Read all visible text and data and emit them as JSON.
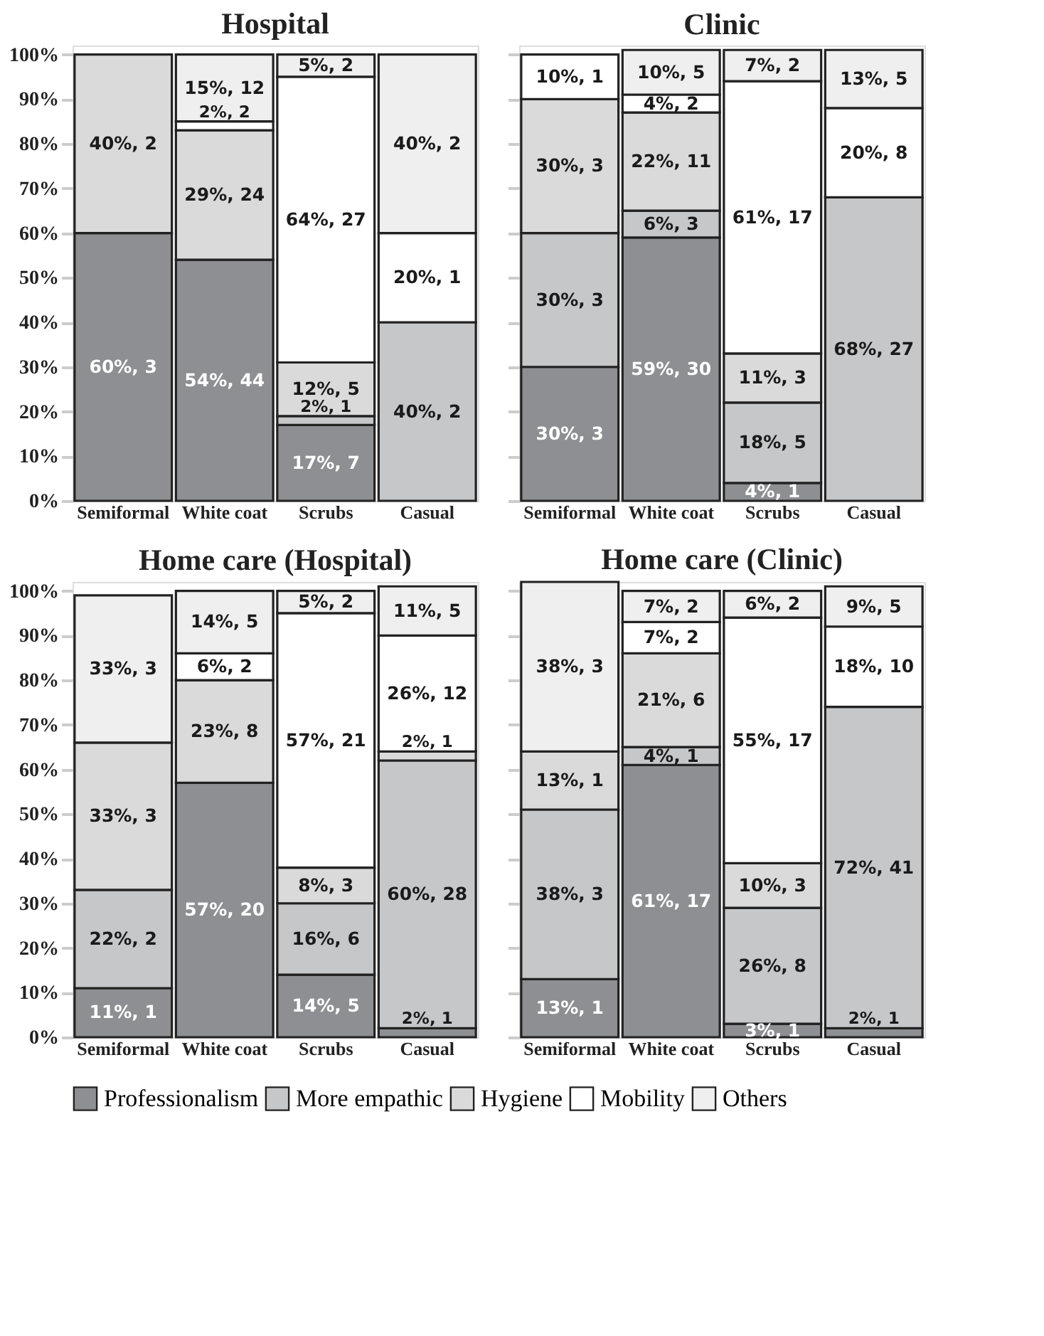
{
  "chart_data": [
    {
      "type": "bar",
      "title": "Hospital",
      "stacked": true,
      "legend": "bottom",
      "grid": false,
      "categories": [
        "Semiformal",
        "White coat",
        "Scrubs",
        "Casual"
      ],
      "ylim": [
        0,
        102
      ],
      "yticks": [
        {
          "value": 0,
          "label": "0%"
        },
        {
          "value": 10,
          "label": "10%"
        },
        {
          "value": 20,
          "label": "20%"
        },
        {
          "value": 30,
          "label": "30%"
        },
        {
          "value": 40,
          "label": "40%"
        },
        {
          "value": 50,
          "label": "50%"
        },
        {
          "value": 60,
          "label": "60%"
        },
        {
          "value": 70,
          "label": "70%"
        },
        {
          "value": 80,
          "label": "80%"
        },
        {
          "value": 90,
          "label": "90%"
        },
        {
          "value": 100,
          "label": "100%"
        }
      ],
      "series": [
        {
          "name": "Professionalism",
          "color": "#8e8f92",
          "values": [
            60,
            54,
            17,
            null
          ],
          "value_labels": [
            "60%, 3",
            "54%, 44",
            "17%, 7",
            null
          ]
        },
        {
          "name": "More empathic",
          "color": "#c6c7c9",
          "values": [
            null,
            null,
            2,
            40
          ],
          "value_labels": [
            null,
            null,
            "2%, 1",
            "40%, 2"
          ]
        },
        {
          "name": "Hygiene",
          "color": "#dadada",
          "values": [
            40,
            29,
            12,
            null
          ],
          "value_labels": [
            "40%, 2",
            "29%, 24",
            "12%, 5",
            null
          ]
        },
        {
          "name": "Mobility",
          "color": "#ffffff",
          "values": [
            null,
            2,
            64,
            20
          ],
          "value_labels": [
            null,
            "2%, 2",
            "64%, 27",
            "20%, 1"
          ]
        },
        {
          "name": "Others",
          "color": "#efefef",
          "values": [
            null,
            15,
            5,
            40
          ],
          "value_labels": [
            null,
            "15%, 12",
            "5%, 2",
            "40%, 2"
          ]
        }
      ]
    },
    {
      "type": "bar",
      "title": "Clinic",
      "stacked": true,
      "legend": "bottom",
      "grid": false,
      "tick_labels": "x",
      "categories": [
        "Semiformal",
        "White coat",
        "Scrubs",
        "Casual"
      ],
      "ylim": [
        0,
        102
      ],
      "yticks": [
        {
          "value": 0,
          "label": "0%"
        },
        {
          "value": 10,
          "label": "10%"
        },
        {
          "value": 20,
          "label": "20%"
        },
        {
          "value": 30,
          "label": "30%"
        },
        {
          "value": 40,
          "label": "40%"
        },
        {
          "value": 50,
          "label": "50%"
        },
        {
          "value": 60,
          "label": "60%"
        },
        {
          "value": 70,
          "label": "70%"
        },
        {
          "value": 80,
          "label": "80%"
        },
        {
          "value": 90,
          "label": "90%"
        },
        {
          "value": 100,
          "label": "100%"
        }
      ],
      "series": [
        {
          "name": "Professionalism",
          "color": "#8e8f92",
          "values": [
            30,
            59,
            4,
            null
          ],
          "value_labels": [
            "30%, 3",
            "59%, 30",
            "4%, 1",
            null
          ]
        },
        {
          "name": "More empathic",
          "color": "#c6c7c9",
          "values": [
            30,
            6,
            18,
            68
          ],
          "value_labels": [
            "30%, 3",
            "6%, 3",
            "18%, 5",
            "68%, 27"
          ]
        },
        {
          "name": "Hygiene",
          "color": "#dadada",
          "values": [
            30,
            22,
            11,
            null
          ],
          "value_labels": [
            "30%, 3",
            "22%, 11",
            "11%, 3",
            null
          ]
        },
        {
          "name": "Mobility",
          "color": "#ffffff",
          "values": [
            10,
            4,
            61,
            20
          ],
          "value_labels": [
            "10%, 1",
            "4%, 2",
            "61%, 17",
            "20%, 8"
          ]
        },
        {
          "name": "Others",
          "color": "#efefef",
          "values": [
            null,
            10,
            7,
            13
          ],
          "value_labels": [
            null,
            "10%, 5",
            "7%, 2",
            "13%, 5"
          ]
        }
      ]
    },
    {
      "type": "bar",
      "title": "Home care (Hospital)",
      "stacked": true,
      "legend": "bottom",
      "grid": false,
      "categories": [
        "Semiformal",
        "White coat",
        "Scrubs",
        "Casual"
      ],
      "ylim": [
        0,
        102
      ],
      "yticks": [
        {
          "value": 0,
          "label": "0%"
        },
        {
          "value": 10,
          "label": "10%"
        },
        {
          "value": 20,
          "label": "20%"
        },
        {
          "value": 30,
          "label": "30%"
        },
        {
          "value": 40,
          "label": "40%"
        },
        {
          "value": 50,
          "label": "50%"
        },
        {
          "value": 60,
          "label": "60%"
        },
        {
          "value": 70,
          "label": "70%"
        },
        {
          "value": 80,
          "label": "80%"
        },
        {
          "value": 90,
          "label": "90%"
        },
        {
          "value": 100,
          "label": "100%"
        }
      ],
      "series": [
        {
          "name": "Professionalism",
          "color": "#8e8f92",
          "values": [
            11,
            57,
            14,
            2
          ],
          "value_labels": [
            "11%, 1",
            "57%, 20",
            "14%, 5",
            "2%, 1"
          ]
        },
        {
          "name": "More empathic",
          "color": "#c6c7c9",
          "values": [
            22,
            null,
            16,
            60
          ],
          "value_labels": [
            "22%, 2",
            null,
            "16%, 6",
            "60%, 28"
          ]
        },
        {
          "name": "Hygiene",
          "color": "#dadada",
          "values": [
            33,
            23,
            8,
            2
          ],
          "value_labels": [
            "33%, 3",
            "23%, 8",
            "8%, 3",
            "2%, 1"
          ]
        },
        {
          "name": "Mobility",
          "color": "#ffffff",
          "values": [
            null,
            6,
            57,
            26
          ],
          "value_labels": [
            null,
            "6%, 2",
            "57%, 21",
            "26%, 12"
          ]
        },
        {
          "name": "Others",
          "color": "#efefef",
          "values": [
            33,
            14,
            5,
            11
          ],
          "value_labels": [
            "33%, 3",
            "14%, 5",
            "5%, 2",
            "11%, 5"
          ]
        }
      ]
    },
    {
      "type": "bar",
      "title": "Home care (Clinic)",
      "stacked": true,
      "legend": "bottom",
      "grid": false,
      "tick_labels": "x",
      "categories": [
        "Semiformal",
        "White coat",
        "Scrubs",
        "Casual"
      ],
      "ylim": [
        0,
        102
      ],
      "yticks": [
        {
          "value": 0,
          "label": "0%"
        },
        {
          "value": 10,
          "label": "10%"
        },
        {
          "value": 20,
          "label": "20%"
        },
        {
          "value": 30,
          "label": "30%"
        },
        {
          "value": 40,
          "label": "40%"
        },
        {
          "value": 50,
          "label": "50%"
        },
        {
          "value": 60,
          "label": "60%"
        },
        {
          "value": 70,
          "label": "70%"
        },
        {
          "value": 80,
          "label": "80%"
        },
        {
          "value": 90,
          "label": "90%"
        },
        {
          "value": 100,
          "label": "100%"
        }
      ],
      "series": [
        {
          "name": "Professionalism",
          "color": "#8e8f92",
          "values": [
            13,
            61,
            3,
            2
          ],
          "value_labels": [
            "13%, 1",
            "61%, 17",
            "3%, 1",
            "2%, 1"
          ]
        },
        {
          "name": "More empathic",
          "color": "#c6c7c9",
          "values": [
            38,
            4,
            26,
            72
          ],
          "value_labels": [
            "38%, 3",
            "4%, 1",
            "26%, 8",
            "72%, 41"
          ]
        },
        {
          "name": "Hygiene",
          "color": "#dadada",
          "values": [
            13,
            21,
            10,
            null
          ],
          "value_labels": [
            "13%, 1",
            "21%, 6",
            "10%, 3",
            null
          ]
        },
        {
          "name": "Mobility",
          "color": "#ffffff",
          "values": [
            null,
            7,
            55,
            18
          ],
          "value_labels": [
            null,
            "7%, 2",
            "55%, 17",
            "18%, 10"
          ]
        },
        {
          "name": "Others",
          "color": "#efefef",
          "values": [
            38,
            7,
            6,
            9
          ],
          "value_labels": [
            "38%, 3",
            "7%, 2",
            "6%, 2",
            "9%, 5"
          ]
        }
      ]
    }
  ]
}
